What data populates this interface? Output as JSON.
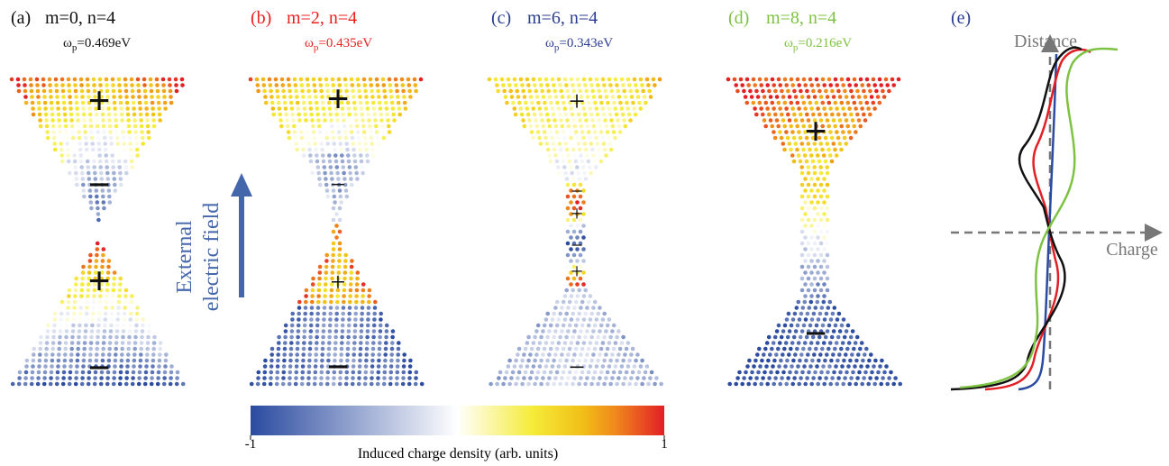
{
  "panels": [
    {
      "label": "(a)",
      "title": "m=0, n=4",
      "color": "#111111",
      "omega": {
        "symbol": "ω",
        "subscript": "p",
        "text": "=0.469eV"
      },
      "signs": [
        "+",
        "−",
        "+",
        "−"
      ]
    },
    {
      "label": "(b)",
      "title": "m=2, n=4",
      "color": "#e8211f",
      "omega": {
        "symbol": "ω",
        "subscript": "p",
        "text": "=0.435eV"
      },
      "signs": [
        "+",
        "−",
        "+",
        "−"
      ]
    },
    {
      "label": "(c)",
      "title": "m=6, n=4",
      "color": "#2c3e91",
      "omega": {
        "symbol": "ω",
        "subscript": "p",
        "text": "=0.343eV"
      },
      "signs": [
        "+",
        "−",
        "+",
        "−",
        "+",
        "−"
      ]
    },
    {
      "label": "(d)",
      "title": "m=8, n=4",
      "color": "#7dc242",
      "omega": {
        "symbol": "ω",
        "subscript": "p",
        "text": "=0.216eV"
      },
      "signs": [
        "+",
        "−"
      ]
    }
  ],
  "field_label": [
    "External",
    "electric field"
  ],
  "colorbar": {
    "min": -1,
    "max": 1,
    "ticks": [
      -1,
      1
    ],
    "label": "Induced charge density (arb. units)"
  },
  "panel_e": {
    "label": "(e)",
    "y_axis": "Distance",
    "x_axis": "Charge"
  }
}
